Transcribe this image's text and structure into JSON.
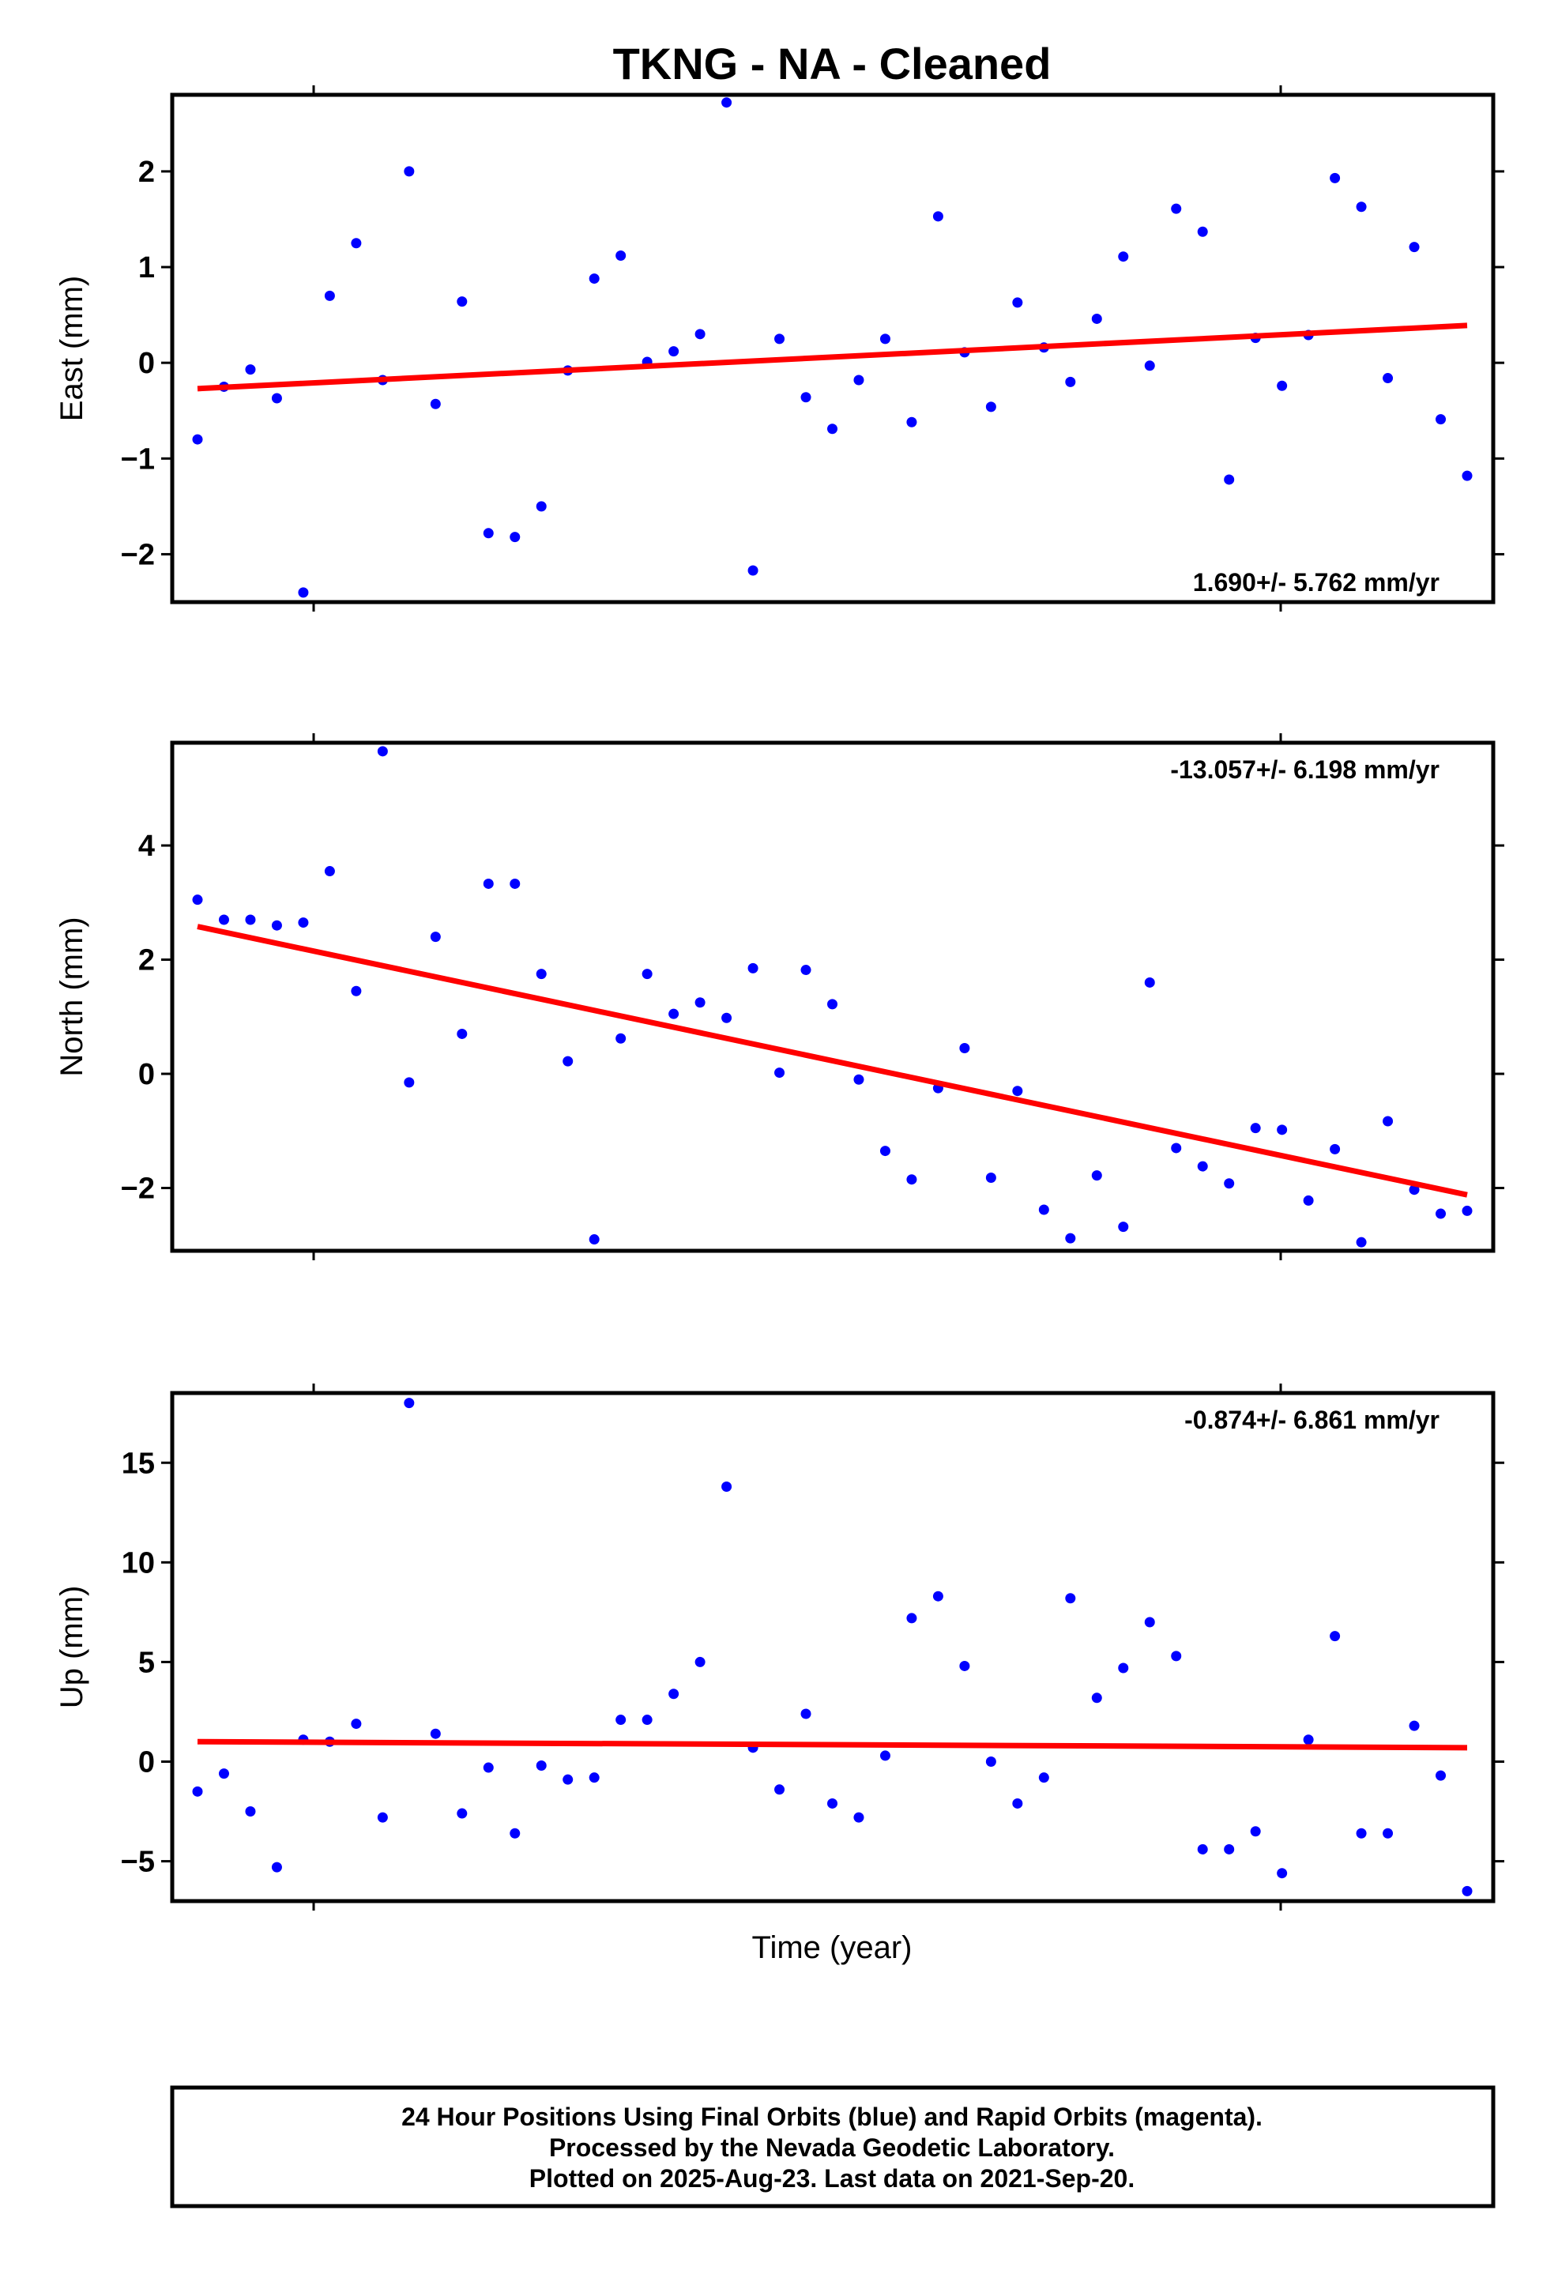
{
  "title": "TKNG  - NA - Cleaned",
  "xlabel": "Time (year)",
  "footer": {
    "line1": "24 Hour Positions Using Final Orbits (blue) and Rapid Orbits (magenta).",
    "line2": "Processed by the Nevada Geodetic Laboratory.",
    "line3": "Plotted on 2025-Aug-23. Last data on 2021-Sep-20."
  },
  "colors": {
    "points": "#0000ff",
    "trend": "#ff0000",
    "frame": "#000000"
  },
  "chart_data": [
    {
      "type": "scatter",
      "ylabel": "East (mm)",
      "rate_label": "1.690+/- 5.762 mm/yr",
      "ylim": [
        -2.5,
        2.8
      ],
      "yticks": [
        -2,
        -1,
        0,
        1,
        2
      ],
      "x": [
        0,
        1,
        2,
        3,
        4,
        5,
        6,
        7,
        8,
        9,
        10,
        11,
        12,
        13,
        14,
        15,
        16,
        17,
        18,
        19,
        20,
        21,
        22,
        23,
        24,
        25,
        26,
        27,
        28,
        29,
        30,
        31,
        32,
        33,
        34,
        35,
        36,
        37,
        38,
        39,
        40,
        41,
        42,
        43,
        44,
        45,
        46,
        47,
        48
      ],
      "values": [
        -0.8,
        -0.25,
        -0.07,
        -0.37,
        -2.4,
        0.7,
        1.25,
        -0.18,
        2.0,
        -0.43,
        0.64,
        -1.78,
        -1.82,
        -1.5,
        -0.08,
        0.88,
        1.12,
        0.01,
        0.12,
        0.3,
        2.72,
        -2.17,
        0.25,
        -0.36,
        -0.69,
        -0.18,
        0.25,
        -0.62,
        1.53,
        0.11,
        -0.46,
        0.63,
        0.16,
        -0.2,
        0.46,
        1.11,
        -0.03,
        1.61,
        1.37,
        -1.22,
        0.26,
        -0.24,
        0.29,
        1.93,
        1.63,
        -0.16,
        1.21,
        -0.59,
        -1.18
      ],
      "trend": [
        [
          0,
          -0.27
        ],
        [
          48,
          0.39
        ]
      ]
    },
    {
      "type": "scatter",
      "ylabel": "North (mm)",
      "rate_label": "-13.057+/- 6.198 mm/yr",
      "ylim": [
        -3.1,
        5.8
      ],
      "yticks": [
        -2,
        0,
        2,
        4
      ],
      "x": [
        0,
        1,
        2,
        3,
        4,
        5,
        6,
        7,
        8,
        9,
        10,
        11,
        12,
        13,
        14,
        15,
        16,
        17,
        18,
        19,
        20,
        21,
        22,
        23,
        24,
        25,
        26,
        27,
        28,
        29,
        30,
        31,
        32,
        33,
        34,
        35,
        36,
        37,
        38,
        39,
        40,
        41,
        42,
        43,
        44,
        45,
        46,
        47,
        48
      ],
      "values": [
        3.05,
        2.7,
        2.7,
        2.6,
        2.65,
        3.55,
        1.45,
        5.65,
        -0.15,
        2.4,
        0.7,
        3.33,
        3.33,
        1.75,
        0.22,
        -2.9,
        0.62,
        1.75,
        1.05,
        1.25,
        0.98,
        1.85,
        0.02,
        1.82,
        1.22,
        -0.1,
        -1.35,
        -1.85,
        -0.25,
        0.45,
        -1.82,
        -0.3,
        -2.38,
        -2.88,
        -1.78,
        -2.68,
        1.6,
        -1.3,
        -1.62,
        -1.92,
        -0.95,
        -0.98,
        -2.22,
        -1.32,
        -2.95,
        -0.83,
        -2.03,
        -2.45,
        -2.4
      ],
      "trend": [
        [
          0,
          2.58
        ],
        [
          48,
          -2.12
        ]
      ]
    },
    {
      "type": "scatter",
      "ylabel": "Up (mm)",
      "rate_label": "-0.874+/- 6.861 mm/yr",
      "ylim": [
        -7.0,
        18.5
      ],
      "yticks": [
        -5,
        0,
        5,
        10,
        15
      ],
      "x": [
        0,
        1,
        2,
        3,
        4,
        5,
        6,
        7,
        8,
        9,
        10,
        11,
        12,
        13,
        14,
        15,
        16,
        17,
        18,
        19,
        20,
        21,
        22,
        23,
        24,
        25,
        26,
        27,
        28,
        29,
        30,
        31,
        32,
        33,
        34,
        35,
        36,
        37,
        38,
        39,
        40,
        41,
        42,
        43,
        44,
        45,
        46,
        47,
        48
      ],
      "values": [
        -1.5,
        -0.6,
        -2.5,
        -5.3,
        1.1,
        1.0,
        1.9,
        -2.8,
        18.0,
        1.4,
        -2.6,
        -0.3,
        -3.6,
        -0.2,
        -0.9,
        -0.8,
        2.1,
        2.1,
        3.4,
        5.0,
        13.8,
        0.7,
        -1.4,
        2.4,
        -2.1,
        -2.8,
        0.3,
        7.2,
        8.3,
        4.8,
        0.0,
        -2.1,
        -0.8,
        8.2,
        3.2,
        4.7,
        7.0,
        5.3,
        -4.4,
        -4.4,
        -3.5,
        -5.6,
        1.1,
        6.3,
        -3.6,
        -3.6,
        1.8,
        -0.7,
        -6.5
      ],
      "trend": [
        [
          0,
          1.0
        ],
        [
          48,
          0.7
        ]
      ]
    }
  ]
}
